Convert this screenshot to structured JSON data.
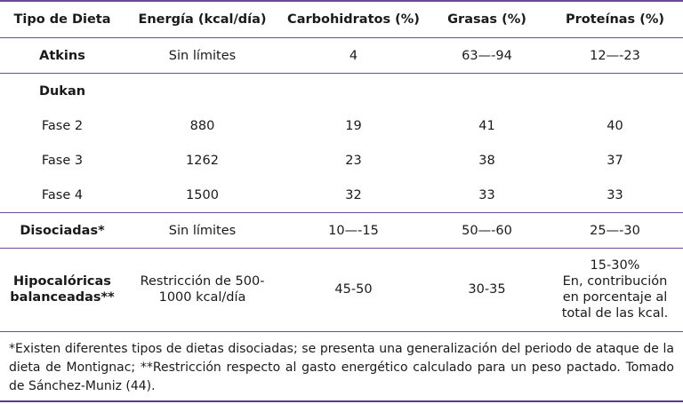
{
  "table": {
    "headers": [
      "Tipo de Dieta",
      "Energía (kcal/día)",
      "Carbohidratos (%)",
      "Grasas (%)",
      "Proteínas (%)"
    ],
    "rows": [
      {
        "name": "Atkins",
        "energy": "Sin límites",
        "carbs": "4",
        "fats": "63—-94",
        "protein": "12—-23"
      },
      {
        "name": "Dukan",
        "energy": "",
        "carbs": "",
        "fats": "",
        "protein": ""
      },
      {
        "name": "Fase 2",
        "energy": "880",
        "carbs": "19",
        "fats": "41",
        "protein": "40"
      },
      {
        "name": "Fase 3",
        "energy": "1262",
        "carbs": "23",
        "fats": "38",
        "protein": "37"
      },
      {
        "name": "Fase 4",
        "energy": "1500",
        "carbs": "32",
        "fats": "33",
        "protein": "33"
      },
      {
        "name": "Disociadas*",
        "energy": "Sin límites",
        "carbs": "10—-15",
        "fats": "50—-60",
        "protein": "25—-30"
      },
      {
        "name_lines": [
          "Hipocalóricas",
          "balanceadas**"
        ],
        "energy_lines": [
          "Restricción de 500-",
          "1000 kcal/día"
        ],
        "carbs": "45-50",
        "fats": "30-35",
        "protein_lines": [
          "15-30%",
          "En, contribución",
          "en porcentaje al",
          "total de las kcal."
        ]
      }
    ]
  },
  "footnote": "*Existen diferentes tipos de dietas disociadas; se presenta una generalización del periodo de ataque de la dieta de Montignac; **Restricción respecto al gasto energético calculado para un peso pactado. Tomado de Sánchez-Muniz (44).",
  "colors": {
    "rule": "#6a4a9a"
  }
}
